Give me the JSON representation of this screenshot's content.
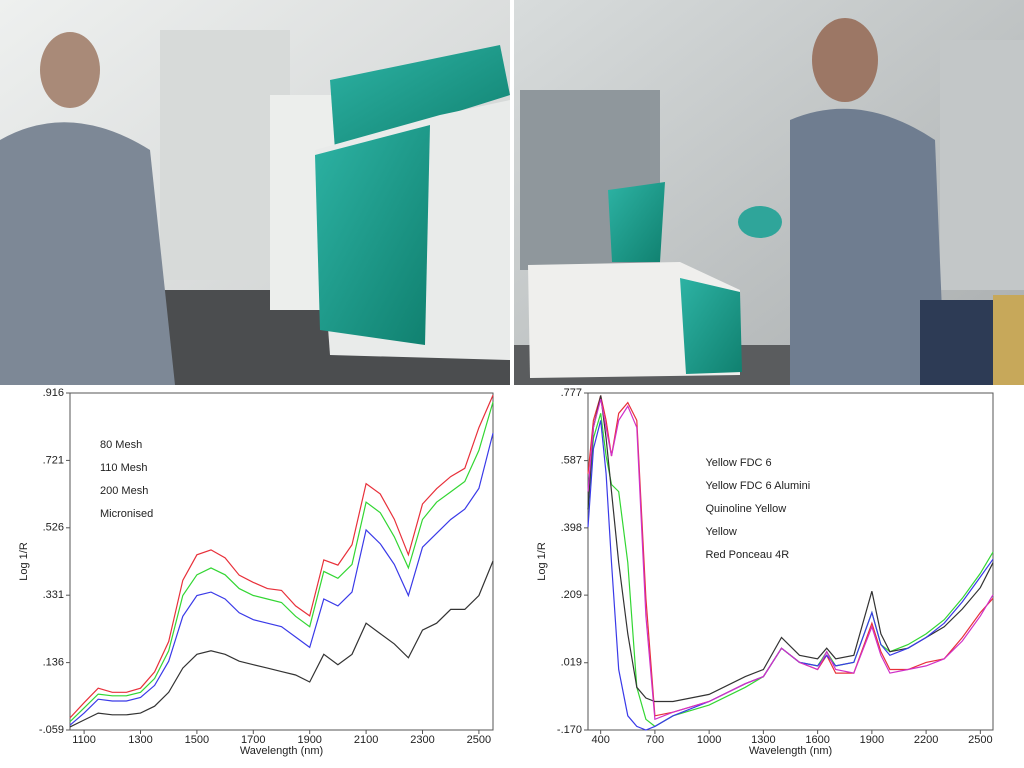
{
  "chart_data": [
    {
      "type": "line",
      "xlabel": "Wavelength (nm)",
      "ylabel": "Log 1/R",
      "legend": "upper left",
      "x": [
        1050,
        1100,
        1150,
        1200,
        1250,
        1300,
        1350,
        1400,
        1450,
        1500,
        1550,
        1600,
        1650,
        1700,
        1750,
        1800,
        1850,
        1900,
        1950,
        2000,
        2050,
        2100,
        2150,
        2200,
        2250,
        2300,
        2350,
        2400,
        2450,
        2500,
        2550
      ],
      "series": [
        {
          "name": "80 Mesh",
          "color": "#e8303a",
          "values": [
            -0.024,
            0.02,
            0.062,
            0.05,
            0.05,
            0.062,
            0.109,
            0.197,
            0.374,
            0.448,
            0.462,
            0.439,
            0.389,
            0.368,
            0.35,
            0.345,
            0.3,
            0.271,
            0.433,
            0.418,
            0.477,
            0.654,
            0.624,
            0.551,
            0.448,
            0.595,
            0.639,
            0.674,
            0.698,
            0.816,
            0.91
          ]
        },
        {
          "name": "110 Mesh",
          "color": "#33d633",
          "values": [
            -0.035,
            0.005,
            0.045,
            0.04,
            0.04,
            0.05,
            0.09,
            0.17,
            0.33,
            0.39,
            0.41,
            0.39,
            0.35,
            0.33,
            0.32,
            0.31,
            0.27,
            0.24,
            0.4,
            0.38,
            0.42,
            0.6,
            0.57,
            0.5,
            0.41,
            0.55,
            0.6,
            0.63,
            0.66,
            0.75,
            0.89
          ]
        },
        {
          "name": "200 Mesh",
          "color": "#3a3ae8",
          "values": [
            -0.045,
            -0.01,
            0.03,
            0.025,
            0.025,
            0.035,
            0.07,
            0.14,
            0.27,
            0.33,
            0.34,
            0.32,
            0.28,
            0.26,
            0.25,
            0.24,
            0.21,
            0.18,
            0.32,
            0.3,
            0.34,
            0.52,
            0.48,
            0.42,
            0.33,
            0.47,
            0.51,
            0.55,
            0.58,
            0.64,
            0.8
          ]
        },
        {
          "name": "Micronised",
          "color": "#333333",
          "values": [
            -0.05,
            -0.03,
            -0.01,
            -0.015,
            -0.015,
            -0.01,
            0.01,
            0.05,
            0.12,
            0.16,
            0.17,
            0.16,
            0.14,
            0.13,
            0.12,
            0.11,
            0.1,
            0.08,
            0.16,
            0.13,
            0.16,
            0.25,
            0.22,
            0.19,
            0.15,
            0.23,
            0.25,
            0.29,
            0.29,
            0.33,
            0.43
          ]
        }
      ],
      "xlim": [
        1050,
        2550
      ],
      "ylim": [
        -0.059,
        0.916
      ],
      "xticks": [
        1100,
        1300,
        1500,
        1700,
        1900,
        2100,
        2300,
        2500
      ],
      "yticks": [
        {
          "value": 0.916,
          "label": ".916"
        },
        {
          "value": 0.721,
          "label": ".721"
        },
        {
          "value": 0.526,
          "label": ".526"
        },
        {
          "value": 0.331,
          "label": ".331"
        },
        {
          "value": 0.136,
          "label": ".136"
        },
        {
          "value": -0.059,
          "label": "-.059"
        }
      ]
    },
    {
      "type": "line",
      "xlabel": "Wavelength (nm)",
      "ylabel": "Log 1/R",
      "legend": "upper center",
      "x": [
        330,
        360,
        400,
        430,
        460,
        500,
        550,
        600,
        650,
        700,
        800,
        1000,
        1200,
        1300,
        1400,
        1500,
        1600,
        1650,
        1700,
        1800,
        1900,
        1950,
        2000,
        2100,
        2200,
        2300,
        2400,
        2500,
        2570
      ],
      "series": [
        {
          "name": "Yellow FDC 6",
          "color": "#e8303a",
          "values": [
            0.55,
            0.7,
            0.77,
            0.7,
            0.6,
            0.72,
            0.75,
            0.7,
            0.2,
            -0.13,
            -0.12,
            -0.09,
            -0.04,
            -0.02,
            0.06,
            0.02,
            0.0,
            0.04,
            -0.01,
            -0.01,
            0.13,
            0.05,
            0.0,
            0.0,
            0.02,
            0.03,
            0.09,
            0.16,
            0.2
          ]
        },
        {
          "name": "Yellow FDC 6 Alumini",
          "color": "#33d633",
          "values": [
            0.45,
            0.65,
            0.72,
            0.6,
            0.52,
            0.5,
            0.3,
            -0.05,
            -0.14,
            -0.16,
            -0.13,
            -0.1,
            -0.05,
            -0.02,
            0.06,
            0.02,
            0.01,
            0.05,
            0.01,
            0.02,
            0.16,
            0.07,
            0.05,
            0.07,
            0.1,
            0.14,
            0.2,
            0.27,
            0.33
          ]
        },
        {
          "name": "Quinoline Yellow",
          "color": "#333333",
          "values": [
            0.45,
            0.68,
            0.77,
            0.65,
            0.5,
            0.3,
            0.1,
            -0.05,
            -0.08,
            -0.09,
            -0.09,
            -0.07,
            -0.02,
            0.0,
            0.09,
            0.04,
            0.03,
            0.06,
            0.03,
            0.04,
            0.22,
            0.1,
            0.05,
            0.06,
            0.09,
            0.12,
            0.17,
            0.23,
            0.3
          ]
        },
        {
          "name": "Yellow",
          "color": "#3a3ae8",
          "values": [
            0.4,
            0.62,
            0.7,
            0.55,
            0.3,
            0.0,
            -0.13,
            -0.16,
            -0.17,
            -0.16,
            -0.13,
            -0.09,
            -0.04,
            -0.02,
            0.06,
            0.02,
            0.01,
            0.04,
            0.01,
            0.02,
            0.16,
            0.07,
            0.04,
            0.06,
            0.09,
            0.13,
            0.19,
            0.26,
            0.31
          ]
        },
        {
          "name": "Red Ponceau 4R",
          "color": "#d030c8",
          "values": [
            0.5,
            0.68,
            0.76,
            0.68,
            0.6,
            0.7,
            0.74,
            0.68,
            0.15,
            -0.14,
            -0.12,
            -0.09,
            -0.04,
            -0.02,
            0.06,
            0.02,
            0.0,
            0.05,
            0.0,
            -0.01,
            0.12,
            0.04,
            -0.01,
            0.0,
            0.01,
            0.03,
            0.08,
            0.15,
            0.21
          ]
        }
      ],
      "xlim": [
        330,
        2570
      ],
      "ylim": [
        -0.17,
        0.777
      ],
      "xticks": [
        400,
        700,
        1000,
        1300,
        1600,
        1900,
        2200,
        2500
      ],
      "yticks": [
        {
          "value": 0.777,
          "label": ".777"
        },
        {
          "value": 0.587,
          "label": ".587"
        },
        {
          "value": 0.398,
          "label": ".398"
        },
        {
          "value": 0.209,
          "label": ".209"
        },
        {
          "value": 0.019,
          "label": ".019"
        },
        {
          "value": -0.17,
          "label": "-.170"
        }
      ]
    }
  ]
}
